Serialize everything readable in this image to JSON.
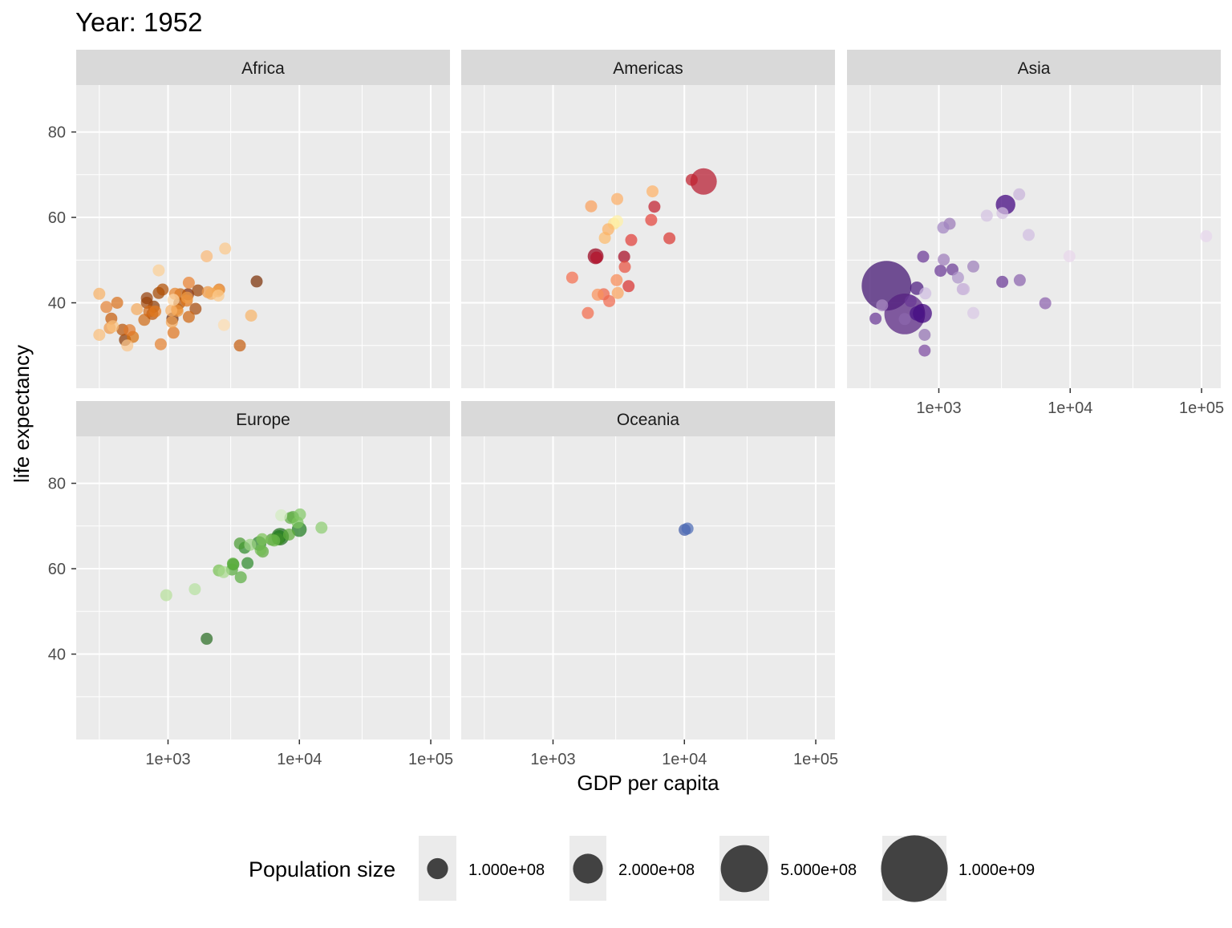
{
  "chart_data": {
    "type": "scatter",
    "title": "Year: 1952",
    "xlabel": "GDP per capita",
    "ylabel": "life expectancy",
    "x_scale": "log10",
    "xlim": [
      200,
      140000
    ],
    "ylim": [
      20,
      91
    ],
    "x_ticks": [
      {
        "value": 1000,
        "label": "1e+03"
      },
      {
        "value": 10000,
        "label": "1e+04"
      },
      {
        "value": 100000,
        "label": "1e+05"
      }
    ],
    "y_ticks": [
      {
        "value": 40,
        "label": "40"
      },
      {
        "value": 60,
        "label": "60"
      },
      {
        "value": 80,
        "label": "80"
      }
    ],
    "grid": true,
    "legend": {
      "title": "Population size",
      "position": "bottom",
      "entries": [
        {
          "label": "1.000e+08",
          "pop": 100000000
        },
        {
          "label": "2.000e+08",
          "pop": 200000000
        },
        {
          "label": "5.000e+08",
          "pop": 500000000
        },
        {
          "label": "1.000e+09",
          "pop": 1000000000
        }
      ]
    },
    "size_by": "population",
    "panels": [
      {
        "name": "Africa",
        "points": [
          {
            "x": 2450,
            "y": 43.1,
            "pop": 9280000,
            "color": "#e2781c"
          },
          {
            "x": 3520,
            "y": 30.0,
            "pop": 4230000,
            "color": "#c55e10"
          },
          {
            "x": 1060,
            "y": 38.2,
            "pop": 1740000,
            "color": "#f6b168"
          },
          {
            "x": 850,
            "y": 47.6,
            "pop": 440000,
            "color": "#fbcf94"
          },
          {
            "x": 540,
            "y": 32.0,
            "pop": 4470000,
            "color": "#d7700d"
          },
          {
            "x": 340,
            "y": 39.0,
            "pop": 2450000,
            "color": "#e58438"
          },
          {
            "x": 1170,
            "y": 38.5,
            "pop": 5010000,
            "color": "#e9892e"
          },
          {
            "x": 1070,
            "y": 35.5,
            "pop": 1290000,
            "color": "#f2a250"
          },
          {
            "x": 1180,
            "y": 38.1,
            "pop": 2680000,
            "color": "#ec953d"
          },
          {
            "x": 1100,
            "y": 40.7,
            "pop": 150000,
            "color": "#fcd7a6"
          },
          {
            "x": 780,
            "y": 39.1,
            "pop": 14100000,
            "color": "#8d3d05"
          },
          {
            "x": 2130,
            "y": 42.1,
            "pop": 850000,
            "color": "#f4ab5a"
          },
          {
            "x": 1390,
            "y": 40.5,
            "pop": 2980000,
            "color": "#de7519"
          },
          {
            "x": 2670,
            "y": 34.8,
            "pop": 60000,
            "color": "#fcdcb0"
          },
          {
            "x": 1420,
            "y": 42.0,
            "pop": 22200000,
            "color": "#7f2704"
          },
          {
            "x": 380,
            "y": 34.5,
            "pop": 216000,
            "color": "#f9c17d"
          },
          {
            "x": 360,
            "y": 34.1,
            "pop": 1440000,
            "color": "#ee9848"
          },
          {
            "x": 4290,
            "y": 37.0,
            "pop": 420000,
            "color": "#f7b46a"
          },
          {
            "x": 490,
            "y": 30.0,
            "pop": 280000,
            "color": "#fac58a"
          },
          {
            "x": 910,
            "y": 43.1,
            "pop": 5580000,
            "color": "#b25004"
          },
          {
            "x": 510,
            "y": 33.6,
            "pop": 2660000,
            "color": "#e1782a"
          },
          {
            "x": 300,
            "y": 32.5,
            "pop": 580000,
            "color": "#f9be7a"
          },
          {
            "x": 850,
            "y": 42.3,
            "pop": 6460000,
            "color": "#a34803"
          },
          {
            "x": 300,
            "y": 42.1,
            "pop": 750000,
            "color": "#f6b166"
          },
          {
            "x": 580,
            "y": 38.5,
            "pop": 860000,
            "color": "#f4aa5e"
          },
          {
            "x": 2390,
            "y": 42.7,
            "pop": 1020000,
            "color": "#f0a047"
          },
          {
            "x": 1440,
            "y": 36.7,
            "pop": 4760000,
            "color": "#cf6712"
          },
          {
            "x": 370,
            "y": 36.3,
            "pop": 2920000,
            "color": "#c65d0b"
          },
          {
            "x": 450,
            "y": 33.7,
            "pop": 3840000,
            "color": "#b95409"
          },
          {
            "x": 1440,
            "y": 44.7,
            "pop": 1020000,
            "color": "#e98130"
          },
          {
            "x": 1970,
            "y": 50.9,
            "pop": 520000,
            "color": "#fab977"
          },
          {
            "x": 1690,
            "y": 42.9,
            "pop": 9940000,
            "color": "#9a4105"
          },
          {
            "x": 470,
            "y": 31.3,
            "pop": 6450000,
            "color": "#8a3a06"
          },
          {
            "x": 2420,
            "y": 41.7,
            "pop": 480000,
            "color": "#fbca8e"
          },
          {
            "x": 760,
            "y": 37.4,
            "pop": 3380000,
            "color": "#b85207"
          },
          {
            "x": 1080,
            "y": 36.3,
            "pop": 33100000,
            "color": "#6d2806"
          },
          {
            "x": 2720,
            "y": 52.7,
            "pop": 260000,
            "color": "#fbc78b"
          },
          {
            "x": 880,
            "y": 30.3,
            "pop": 2140000,
            "color": "#e58232"
          },
          {
            "x": 4730,
            "y": 45.0,
            "pop": 14300000,
            "color": "#7a2f05"
          },
          {
            "x": 1620,
            "y": 38.6,
            "pop": 8500000,
            "color": "#a64b0d"
          },
          {
            "x": 1400,
            "y": 41.2,
            "pop": 1220000,
            "color": "#f09c46"
          },
          {
            "x": 1100,
            "y": 33.0,
            "pop": 2950000,
            "color": "#df7620"
          },
          {
            "x": 690,
            "y": 40.0,
            "pop": 5820000,
            "color": "#a34a0b"
          },
          {
            "x": 720,
            "y": 38.0,
            "pop": 3080000,
            "color": "#d26a15"
          },
          {
            "x": 690,
            "y": 41.1,
            "pop": 5800000,
            "color": "#95400a"
          },
          {
            "x": 410,
            "y": 40.0,
            "pop": 3090000,
            "color": "#d8701c"
          },
          {
            "x": 1220,
            "y": 39.9,
            "pop": 4050000,
            "color": "#b35307"
          },
          {
            "x": 1130,
            "y": 42.1,
            "pop": 2850000,
            "color": "#e8852d"
          },
          {
            "x": 660,
            "y": 36.0,
            "pop": 4200000,
            "color": "#cf6c18"
          },
          {
            "x": 1240,
            "y": 42.0,
            "pop": 3940000,
            "color": "#c2600d"
          },
          {
            "x": 800,
            "y": 38.0,
            "pop": 3010000,
            "color": "#e0781f"
          },
          {
            "x": 2010,
            "y": 42.5,
            "pop": 1420000,
            "color": "#ee9845"
          }
        ]
      },
      {
        "name": "Americas",
        "points": [
          {
            "x": 5910,
            "y": 62.5,
            "pop": 17900000,
            "color": "#c01f2c"
          },
          {
            "x": 2680,
            "y": 40.4,
            "pop": 2880000,
            "color": "#f06a4d"
          },
          {
            "x": 2110,
            "y": 50.9,
            "pop": 56600000,
            "color": "#99001c"
          },
          {
            "x": 11370,
            "y": 68.8,
            "pop": 14800000,
            "color": "#c1212f"
          },
          {
            "x": 3940,
            "y": 54.7,
            "pop": 6380000,
            "color": "#e03d37"
          },
          {
            "x": 2140,
            "y": 50.6,
            "pop": 12400000,
            "color": "#b3102a"
          },
          {
            "x": 2630,
            "y": 57.2,
            "pop": 930000,
            "color": "#fcb264"
          },
          {
            "x": 5590,
            "y": 59.4,
            "pop": 6010000,
            "color": "#e3423a"
          },
          {
            "x": 1400,
            "y": 45.9,
            "pop": 2490000,
            "color": "#f46d4d"
          },
          {
            "x": 3520,
            "y": 48.4,
            "pop": 3550000,
            "color": "#e8513f"
          },
          {
            "x": 3050,
            "y": 45.3,
            "pop": 2040000,
            "color": "#f88a54"
          },
          {
            "x": 2430,
            "y": 42.0,
            "pop": 3150000,
            "color": "#ef6446"
          },
          {
            "x": 1840,
            "y": 37.6,
            "pop": 3200000,
            "color": "#f26b4b"
          },
          {
            "x": 2190,
            "y": 41.9,
            "pop": 1520000,
            "color": "#f9915a"
          },
          {
            "x": 2900,
            "y": 58.5,
            "pop": 1430000,
            "color": "#fde58f"
          },
          {
            "x": 3480,
            "y": 50.8,
            "pop": 30100000,
            "color": "#a60a23"
          },
          {
            "x": 3110,
            "y": 42.3,
            "pop": 1170000,
            "color": "#fba45e"
          },
          {
            "x": 2480,
            "y": 55.2,
            "pop": 940000,
            "color": "#fcbb6c"
          },
          {
            "x": 1950,
            "y": 62.6,
            "pop": 1560000,
            "color": "#f9a05c"
          },
          {
            "x": 3760,
            "y": 43.9,
            "pop": 8030000,
            "color": "#d8312e"
          },
          {
            "x": 3080,
            "y": 64.3,
            "pop": 2230000,
            "color": "#fcaf66"
          },
          {
            "x": 3080,
            "y": 59.1,
            "pop": 660000,
            "color": "#fef0a6"
          },
          {
            "x": 13990,
            "y": 68.4,
            "pop": 157600000,
            "color": "#b5172d"
          },
          {
            "x": 5720,
            "y": 66.1,
            "pop": 2250000,
            "color": "#fdb166"
          },
          {
            "x": 7690,
            "y": 55.1,
            "pop": 5440000,
            "color": "#da3732"
          }
        ]
      },
      {
        "name": "Asia",
        "points": [
          {
            "x": 780,
            "y": 28.8,
            "pop": 8430000,
            "color": "#7d4aa1"
          },
          {
            "x": 9870,
            "y": 50.9,
            "pop": 120000,
            "color": "#e7d6ea"
          },
          {
            "x": 680,
            "y": 37.5,
            "pop": 46900000,
            "color": "#4a1486"
          },
          {
            "x": 370,
            "y": 39.4,
            "pop": 4690000,
            "color": "#a98bc2"
          },
          {
            "x": 400,
            "y": 44.0,
            "pop": 556300000,
            "color": "#3f0f6f"
          },
          {
            "x": 3050,
            "y": 61.0,
            "pop": 2130000,
            "color": "#d4c1e0"
          },
          {
            "x": 550,
            "y": 37.4,
            "pop": 372000000,
            "color": "#54207f"
          },
          {
            "x": 750,
            "y": 37.5,
            "pop": 82100000,
            "color": "#3f007d"
          },
          {
            "x": 3040,
            "y": 44.9,
            "pop": 17300000,
            "color": "#6a3895"
          },
          {
            "x": 4130,
            "y": 45.3,
            "pop": 5440000,
            "color": "#8a63ad"
          },
          {
            "x": 4090,
            "y": 65.4,
            "pop": 1620000,
            "color": "#c8b3d9"
          },
          {
            "x": 3220,
            "y": 63.0,
            "pop": 86500000,
            "color": "#3f007d"
          },
          {
            "x": 1550,
            "y": 43.2,
            "pop": 610000,
            "color": "#cdb8dc"
          },
          {
            "x": 1090,
            "y": 50.1,
            "pop": 8870000,
            "color": "#9c7bba"
          },
          {
            "x": 1030,
            "y": 47.5,
            "pop": 20900000,
            "color": "#6a3895"
          },
          {
            "x": 108380,
            "y": 55.6,
            "pop": 160000,
            "color": "#e6d5ec"
          },
          {
            "x": 4830,
            "y": 55.9,
            "pop": 1440000,
            "color": "#d0bde0"
          },
          {
            "x": 1830,
            "y": 48.5,
            "pop": 6750000,
            "color": "#9d7eba"
          },
          {
            "x": 790,
            "y": 42.2,
            "pop": 800000,
            "color": "#cfbde0"
          },
          {
            "x": 330,
            "y": 36.3,
            "pop": 20100000,
            "color": "#6a3895"
          },
          {
            "x": 550,
            "y": 36.2,
            "pop": 9180000,
            "color": "#8c66ad"
          },
          {
            "x": 1830,
            "y": 37.6,
            "pop": 510000,
            "color": "#d8c8e5"
          },
          {
            "x": 680,
            "y": 43.4,
            "pop": 41300000,
            "color": "#4b1a7f"
          },
          {
            "x": 1270,
            "y": 47.8,
            "pop": 22400000,
            "color": "#6b3b96"
          },
          {
            "x": 6460,
            "y": 39.9,
            "pop": 4010000,
            "color": "#8b5fac"
          },
          {
            "x": 2320,
            "y": 60.4,
            "pop": 1130000,
            "color": "#d3c1e0"
          },
          {
            "x": 1080,
            "y": 57.6,
            "pop": 7980000,
            "color": "#a184c1"
          },
          {
            "x": 1400,
            "y": 45.9,
            "pop": 3660000,
            "color": "#ad94c9"
          },
          {
            "x": 1210,
            "y": 58.5,
            "pop": 8550000,
            "color": "#9a78b7"
          },
          {
            "x": 760,
            "y": 50.8,
            "pop": 21300000,
            "color": "#6a3895"
          },
          {
            "x": 610,
            "y": 40.4,
            "pop": 26200000,
            "color": "#6a3895"
          },
          {
            "x": 1520,
            "y": 43.2,
            "pop": 1090000,
            "color": "#c2aad5"
          },
          {
            "x": 780,
            "y": 32.5,
            "pop": 4960000,
            "color": "#9270b1"
          }
        ]
      },
      {
        "name": "Europe",
        "points": [
          {
            "x": 1600,
            "y": 55.2,
            "pop": 1280000,
            "color": "#b6e09f"
          },
          {
            "x": 6140,
            "y": 66.8,
            "pop": 6930000,
            "color": "#4f9e30"
          },
          {
            "x": 8340,
            "y": 68.0,
            "pop": 8730000,
            "color": "#5fad3b"
          },
          {
            "x": 970,
            "y": 53.8,
            "pop": 2790000,
            "color": "#b7df9b"
          },
          {
            "x": 2440,
            "y": 59.6,
            "pop": 7270000,
            "color": "#77c152"
          },
          {
            "x": 3120,
            "y": 61.2,
            "pop": 3880000,
            "color": "#5aae3c"
          },
          {
            "x": 6880,
            "y": 66.9,
            "pop": 9130000,
            "color": "#3f8f28"
          },
          {
            "x": 9690,
            "y": 70.8,
            "pop": 4330000,
            "color": "#7cc55d"
          },
          {
            "x": 6420,
            "y": 66.6,
            "pop": 4090000,
            "color": "#6cb84b"
          },
          {
            "x": 7030,
            "y": 67.4,
            "pop": 42500000,
            "color": "#217d1c"
          },
          {
            "x": 7140,
            "y": 67.5,
            "pop": 69100000,
            "color": "#1a6e18"
          },
          {
            "x": 3530,
            "y": 65.9,
            "pop": 7730000,
            "color": "#4a9b32"
          },
          {
            "x": 5260,
            "y": 64.0,
            "pop": 9500000,
            "color": "#5ea93d"
          },
          {
            "x": 7270,
            "y": 72.5,
            "pop": 150000,
            "color": "#d2ecc1"
          },
          {
            "x": 5210,
            "y": 66.9,
            "pop": 2950000,
            "color": "#7bc258"
          },
          {
            "x": 4930,
            "y": 65.9,
            "pop": 47700000,
            "color": "#2b8428"
          },
          {
            "x": 2650,
            "y": 59.2,
            "pop": 410000,
            "color": "#a8d98c"
          },
          {
            "x": 8940,
            "y": 72.1,
            "pop": 10400000,
            "color": "#56a53a"
          },
          {
            "x": 10100,
            "y": 72.7,
            "pop": 3330000,
            "color": "#82c766"
          },
          {
            "x": 4030,
            "y": 61.3,
            "pop": 25700000,
            "color": "#2e8a2c"
          },
          {
            "x": 3070,
            "y": 59.8,
            "pop": 8530000,
            "color": "#58aa3f"
          },
          {
            "x": 3140,
            "y": 61.0,
            "pop": 16600000,
            "color": "#3e922e"
          },
          {
            "x": 3580,
            "y": 58.0,
            "pop": 6860000,
            "color": "#5cad43"
          },
          {
            "x": 5070,
            "y": 64.4,
            "pop": 3560000,
            "color": "#73bd54"
          },
          {
            "x": 4220,
            "y": 65.6,
            "pop": 1490000,
            "color": "#9dd383"
          },
          {
            "x": 3830,
            "y": 64.9,
            "pop": 28500000,
            "color": "#2f8b2d"
          },
          {
            "x": 8530,
            "y": 71.9,
            "pop": 7120000,
            "color": "#62ae47"
          },
          {
            "x": 14730,
            "y": 69.6,
            "pop": 4820000,
            "color": "#8ccc70"
          },
          {
            "x": 1970,
            "y": 43.6,
            "pop": 22200000,
            "color": "#2a6c22"
          },
          {
            "x": 9980,
            "y": 69.2,
            "pop": 50400000,
            "color": "#1e7c1f"
          }
        ]
      },
      {
        "name": "Oceania",
        "points": [
          {
            "x": 10040,
            "y": 69.1,
            "pop": 8690000,
            "color": "#3f5aa8"
          },
          {
            "x": 10560,
            "y": 69.4,
            "pop": 1990000,
            "color": "#4c6bb5"
          }
        ]
      }
    ]
  }
}
